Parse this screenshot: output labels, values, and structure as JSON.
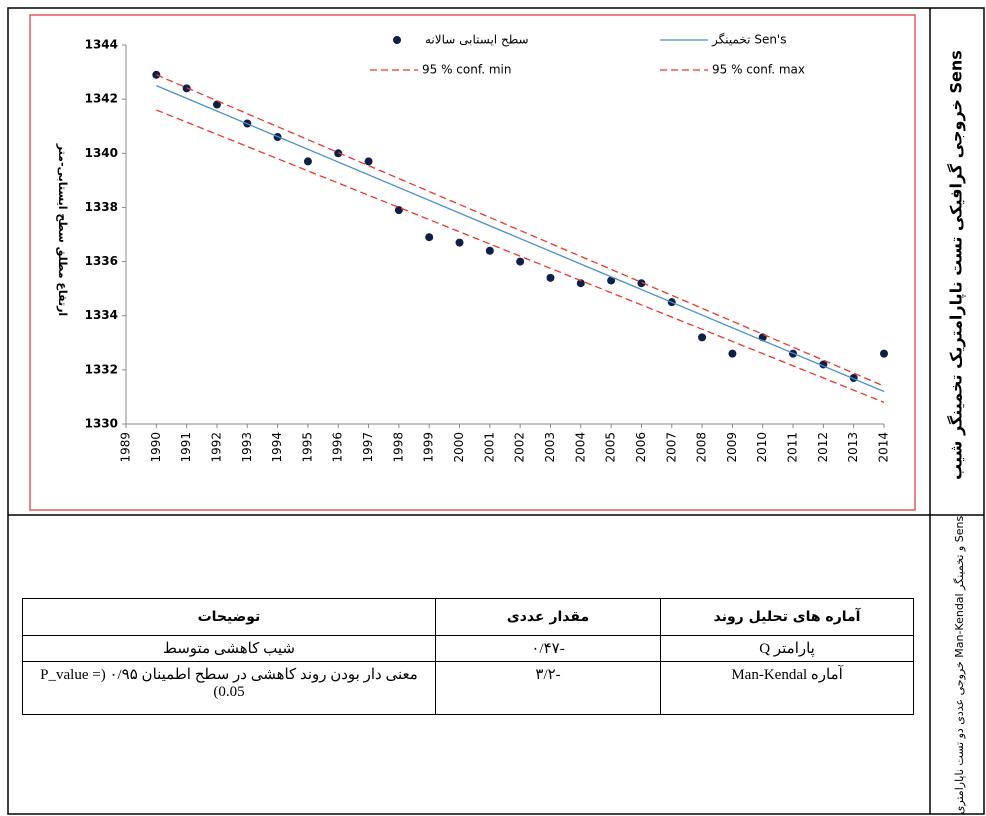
{
  "chart_data": {
    "type": "scatter",
    "y_label": "ارتفاع مطلق سطح ایستابی-متر",
    "x": [
      1990,
      1991,
      1992,
      1993,
      1994,
      1995,
      1996,
      1997,
      1998,
      1999,
      2000,
      2001,
      2002,
      2003,
      2004,
      2005,
      2006,
      2007,
      2008,
      2009,
      2010,
      2011,
      2012,
      2013,
      2014
    ],
    "xlim": [
      1989,
      2014
    ],
    "xticks": [
      1989,
      1990,
      1991,
      1992,
      1993,
      1994,
      1995,
      1996,
      1997,
      1998,
      1999,
      2000,
      2001,
      2002,
      2003,
      2004,
      2005,
      2006,
      2007,
      2008,
      2009,
      2010,
      2011,
      2012,
      2013,
      2014
    ],
    "ylim": [
      1330,
      1344
    ],
    "yticks": [
      1330,
      1332,
      1334,
      1336,
      1338,
      1340,
      1342,
      1344
    ],
    "series": [
      {
        "name": "سطح ایستابی سالانه",
        "color": "#0f1f45",
        "values": [
          1342.9,
          1342.4,
          1341.8,
          1341.1,
          1340.6,
          1339.7,
          1340.0,
          1339.7,
          1337.9,
          1336.9,
          1336.7,
          1336.4,
          1336.0,
          1335.4,
          1335.2,
          1335.3,
          1335.2,
          1334.5,
          1333.2,
          1332.6,
          1333.2,
          1332.6,
          1332.2,
          1331.7,
          1332.6
        ]
      },
      {
        "name": "تخمینگر Sen's",
        "color": "#4a90d0",
        "x": [
          1990,
          2014
        ],
        "values": [
          1342.5,
          1331.2
        ]
      },
      {
        "name": "95 % conf. min",
        "color": "#e8382f",
        "dashed": true,
        "x": [
          1990,
          2014
        ],
        "values": [
          1341.6,
          1330.8
        ]
      },
      {
        "name": "95 % conf. max",
        "color": "#e8382f",
        "dashed": true,
        "x": [
          1990,
          2014
        ],
        "values": [
          1342.9,
          1331.4
        ]
      }
    ]
  },
  "side_labels": [
    "خروجی گرافیکی تست ناپارامتریک تخمینگر شیب Sens",
    "خروجی عددی دو تست ناپارامتری Man-Kendal و تخمینگر Sens"
  ],
  "table": {
    "header": [
      "آماره های تحلیل روند",
      "مقدار عددی",
      "توضیحات"
    ],
    "rows": [
      [
        "پارامتر Q",
        "-۰/۴۷",
        "شیب کاهشی متوسط"
      ],
      [
        "آماره Man-Kendal",
        "-۳/۲",
        "معنی دار بودن روند کاهشی در سطح اطمینان ۰/۹۵ (P_value = 0.05)"
      ]
    ]
  }
}
